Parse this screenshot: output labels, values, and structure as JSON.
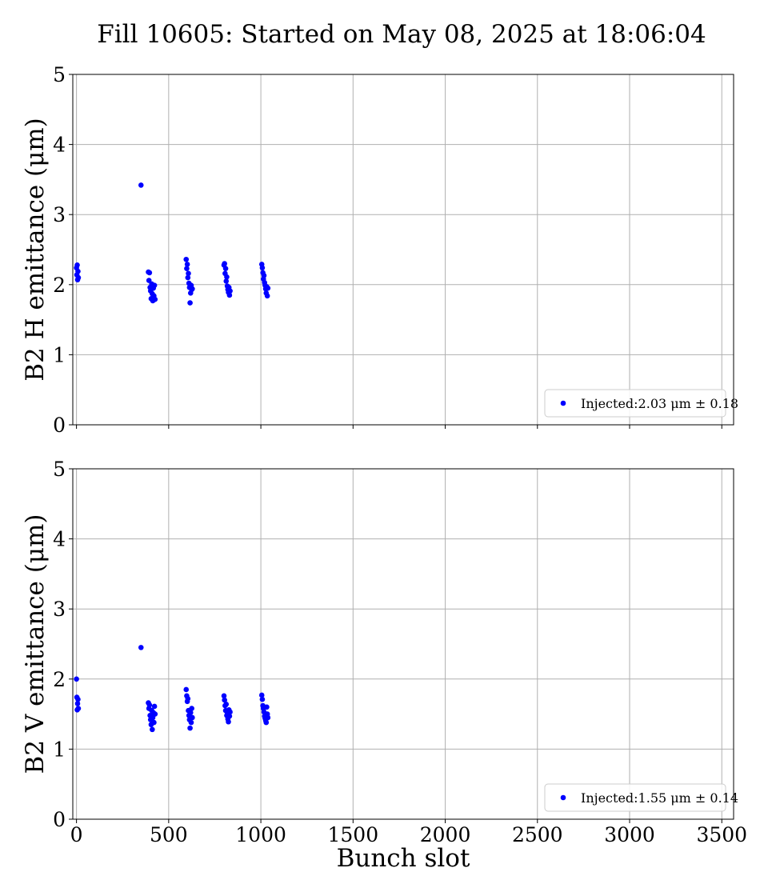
{
  "title": "Fill 10605: Started on May 08, 2025 at 18:06:04",
  "colors": {
    "points": "#0000ff",
    "grid": "#b0b0b0",
    "legend_border": "#cccccc"
  },
  "chart_data": [
    {
      "type": "scatter",
      "ylabel": "B2 H emittance (μm)",
      "xlabel": "",
      "xlim": [
        -20,
        3564
      ],
      "ylim": [
        0,
        5
      ],
      "xticks": [
        0,
        500,
        1000,
        1500,
        2000,
        2500,
        3000,
        3500
      ],
      "yticks": [
        0,
        1,
        2,
        3,
        4,
        5
      ],
      "show_xtick_labels": false,
      "grid": true,
      "legend": {
        "placement": "lower-right",
        "label": "Injected:2.03 μm ± 0.18"
      },
      "series": [
        {
          "x": [
            0,
            2,
            4,
            6,
            8,
            10,
            350,
            390,
            393,
            396,
            399,
            402,
            405,
            408,
            411,
            414,
            417,
            420,
            423,
            426,
            595,
            598,
            601,
            604,
            607,
            610,
            613,
            616,
            619,
            622,
            625,
            628,
            800,
            803,
            806,
            809,
            812,
            815,
            818,
            821,
            824,
            827,
            830,
            833,
            1005,
            1008,
            1011,
            1014,
            1017,
            1020,
            1023,
            1026,
            1029,
            1032,
            1035,
            1038
          ],
          "y": [
            2.24,
            2.14,
            2.28,
            2.07,
            2.19,
            2.1,
            3.42,
            2.18,
            2.06,
            2.17,
            1.96,
            1.91,
            1.8,
            2.01,
            1.87,
            1.77,
            1.95,
            1.84,
            1.99,
            1.79,
            2.36,
            2.23,
            2.29,
            2.1,
            2.16,
            2.02,
            1.96,
            1.74,
            1.88,
            1.99,
            1.93,
            1.94,
            2.28,
            2.3,
            2.16,
            2.23,
            2.05,
            2.11,
            1.98,
            1.93,
            1.89,
            1.96,
            1.85,
            1.91,
            2.29,
            2.24,
            2.17,
            2.08,
            2.13,
            2.03,
            1.99,
            1.94,
            1.88,
            1.97,
            1.84,
            1.95
          ]
        }
      ]
    },
    {
      "type": "scatter",
      "ylabel": "B2 V emittance (μm)",
      "xlabel": "Bunch slot",
      "xlim": [
        -20,
        3564
      ],
      "ylim": [
        0,
        5
      ],
      "xticks": [
        0,
        500,
        1000,
        1500,
        2000,
        2500,
        3000,
        3500
      ],
      "yticks": [
        0,
        1,
        2,
        3,
        4,
        5
      ],
      "show_xtick_labels": true,
      "grid": true,
      "legend": {
        "placement": "lower-right",
        "label": "Injected:1.55 μm ± 0.14"
      },
      "series": [
        {
          "x": [
            0,
            2,
            4,
            6,
            8,
            10,
            350,
            390,
            393,
            396,
            399,
            402,
            405,
            408,
            411,
            414,
            417,
            420,
            423,
            426,
            595,
            598,
            601,
            604,
            607,
            610,
            613,
            616,
            619,
            622,
            625,
            628,
            800,
            803,
            806,
            809,
            812,
            815,
            818,
            821,
            824,
            827,
            830,
            833,
            1005,
            1008,
            1011,
            1014,
            1017,
            1020,
            1023,
            1026,
            1029,
            1032,
            1035,
            1038
          ],
          "y": [
            2.0,
            1.74,
            1.56,
            1.65,
            1.71,
            1.58,
            2.45,
            1.66,
            1.58,
            1.63,
            1.48,
            1.42,
            1.35,
            1.55,
            1.28,
            1.45,
            1.52,
            1.38,
            1.61,
            1.5,
            1.85,
            1.76,
            1.68,
            1.72,
            1.55,
            1.48,
            1.42,
            1.3,
            1.52,
            1.38,
            1.58,
            1.45,
            1.76,
            1.7,
            1.62,
            1.55,
            1.64,
            1.48,
            1.52,
            1.43,
            1.39,
            1.56,
            1.47,
            1.53,
            1.77,
            1.71,
            1.62,
            1.58,
            1.53,
            1.47,
            1.44,
            1.41,
            1.38,
            1.6,
            1.5,
            1.45
          ]
        }
      ]
    }
  ]
}
